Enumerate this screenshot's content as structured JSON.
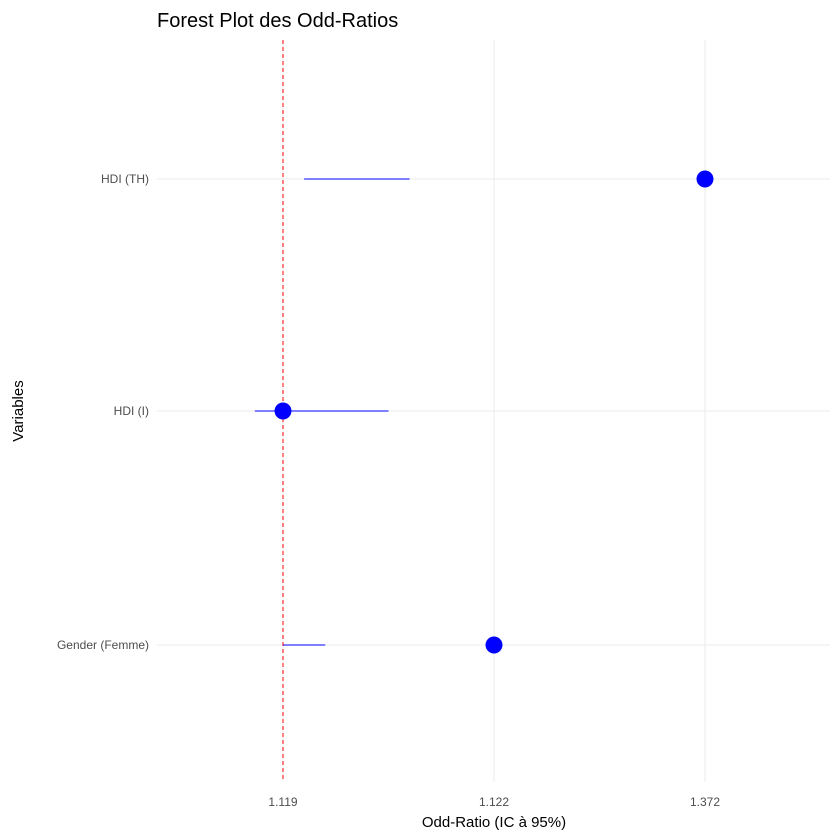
{
  "chart_data": {
    "type": "forest",
    "title": "Forest Plot des Odd-Ratios",
    "xlabel": "Odd-Ratio (IC à 95%)",
    "ylabel": "Variables",
    "x_ticks": [
      "1.119",
      "1.122",
      "1.372"
    ],
    "reference_line": {
      "at_tick": "1.119",
      "style": "dashed",
      "color": "#ff0000"
    },
    "categories": [
      "Gender (Femme)",
      "HDI (I)",
      "HDI (TH)"
    ],
    "series": [
      {
        "point_color": "#0000ff",
        "points": [
          {
            "category": "Gender (Femme)",
            "estimate": 1.122,
            "ci_low": 1.119,
            "ci_high": 1.1196
          },
          {
            "category": "HDI (I)",
            "estimate": 1.119,
            "ci_low": 1.1186,
            "ci_high": 1.1205
          },
          {
            "category": "HDI (TH)",
            "estimate": 1.372,
            "ci_low": 1.1193,
            "ci_high": 1.1208
          }
        ]
      }
    ],
    "grid": true,
    "legend": "none"
  }
}
